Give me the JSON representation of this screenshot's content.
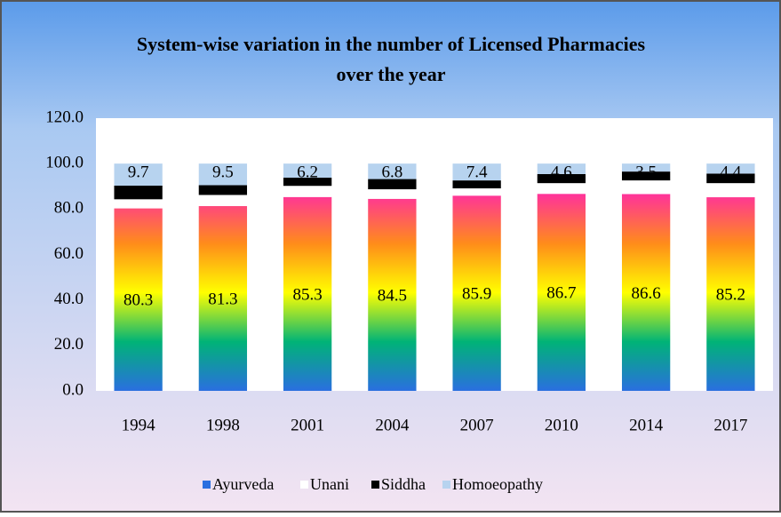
{
  "chart_data": {
    "type": "stacked_bar",
    "title": [
      "System-wise variation in the number of Licensed Pharmacies",
      "over the year"
    ],
    "categories": [
      "1994",
      "1998",
      "2001",
      "2004",
      "2007",
      "2010",
      "2014",
      "2017"
    ],
    "series": [
      {
        "name": "Ayurveda",
        "gradient": [
          "#ff3399",
          "#ff8c1a",
          "#ffff00",
          "#00b377",
          "#2a6fe0"
        ],
        "values": [
          80.3,
          81.3,
          85.3,
          84.5,
          85.9,
          86.7,
          86.6,
          85.2
        ],
        "labels": true
      },
      {
        "name": "Unani",
        "color": "#ffffff",
        "values": [
          4.0,
          4.9,
          4.9,
          4.2,
          3.2,
          4.7,
          6.0,
          6.2
        ],
        "labels": false
      },
      {
        "name": "Siddha",
        "color": "#000000",
        "values": [
          6.0,
          4.3,
          3.6,
          4.5,
          3.5,
          4.0,
          3.9,
          4.2
        ],
        "labels": false
      },
      {
        "name": "Homoeopathy",
        "color": "#b7d3ef",
        "values": [
          9.7,
          9.5,
          6.2,
          6.8,
          7.4,
          4.6,
          3.5,
          4.4
        ],
        "labels": true
      }
    ],
    "ylim": [
      0,
      120
    ],
    "yticks": [
      {
        "value": 0,
        "label": "0.0"
      },
      {
        "value": 20,
        "label": "20.0"
      },
      {
        "value": 40,
        "label": "40.0"
      },
      {
        "value": 60,
        "label": "60.0"
      },
      {
        "value": 80,
        "label": "80.0"
      },
      {
        "value": 100,
        "label": "100.0"
      },
      {
        "value": 120,
        "label": "120.0"
      }
    ],
    "legend": "bottom"
  }
}
